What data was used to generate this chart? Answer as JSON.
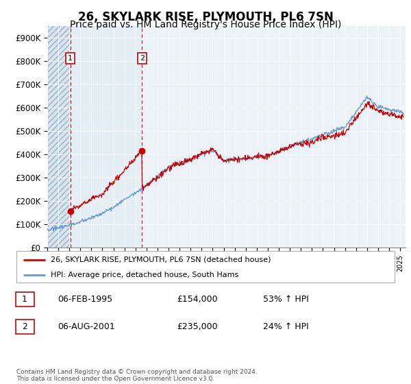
{
  "title": "26, SKYLARK RISE, PLYMOUTH, PL6 7SN",
  "subtitle": "Price paid vs. HM Land Registry's House Price Index (HPI)",
  "ylim": [
    0,
    950000
  ],
  "yticks": [
    0,
    100000,
    200000,
    300000,
    400000,
    500000,
    600000,
    700000,
    800000,
    900000
  ],
  "ytick_labels": [
    "£0",
    "£100K",
    "£200K",
    "£300K",
    "£400K",
    "£500K",
    "£600K",
    "£700K",
    "£800K",
    "£900K"
  ],
  "xlim_start": 1993.0,
  "xlim_end": 2025.5,
  "sale1_year": 1995.09,
  "sale1_price": 154000,
  "sale1_date": "06-FEB-1995",
  "sale1_hpi_pct": "53% ↑ HPI",
  "sale2_year": 2001.59,
  "sale2_price": 235000,
  "sale2_date": "06-AUG-2001",
  "sale2_hpi_pct": "24% ↑ HPI",
  "red_line_color": "#cc0000",
  "blue_line_color": "#6699cc",
  "hatch_bg_color": "#d8e4ee",
  "light_bg_color": "#e4eef6",
  "main_bg_color": "#eaf2f8",
  "legend_line1": "26, SKYLARK RISE, PLYMOUTH, PL6 7SN (detached house)",
  "legend_line2": "HPI: Average price, detached house, South Hams",
  "footer": "Contains HM Land Registry data © Crown copyright and database right 2024.\nThis data is licensed under the Open Government Licence v3.0.",
  "title_fontsize": 12,
  "subtitle_fontsize": 10
}
